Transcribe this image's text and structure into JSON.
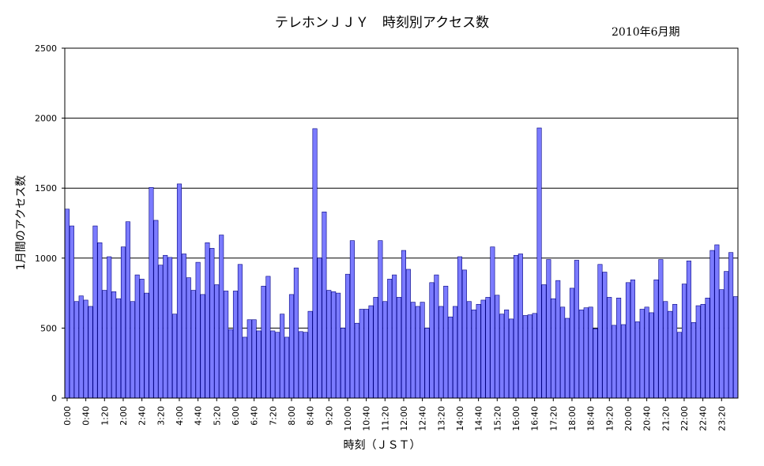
{
  "chart_data": {
    "type": "bar",
    "title": "テレホンＪＪＹ　時刻別アクセス数",
    "subtitle": "2010年6月期",
    "xlabel": "時刻（ＪＳＴ）",
    "ylabel": "1月間のアクセス数",
    "ylim": [
      0,
      2500
    ],
    "y_ticks": [
      0,
      500,
      1000,
      1500,
      2000,
      2500
    ],
    "grid": true,
    "legend": "none",
    "bar_color": "#7b7bff",
    "bar_edge_color": "#000080",
    "x_tick_labels": [
      "0:00",
      "0:40",
      "1:20",
      "2:00",
      "2:40",
      "3:20",
      "4:00",
      "4:40",
      "5:20",
      "6:00",
      "6:40",
      "7:20",
      "8:00",
      "8:40",
      "9:20",
      "10:00",
      "10:40",
      "11:20",
      "12:00",
      "12:40",
      "13:20",
      "14:00",
      "14:40",
      "15:20",
      "16:00",
      "16:40",
      "17:20",
      "18:00",
      "18:40",
      "19:20",
      "20:00",
      "20:40",
      "21:20",
      "22:00",
      "22:40",
      "23:20"
    ],
    "x_tick_every": 4,
    "values": [
      1350,
      1230,
      690,
      730,
      700,
      655,
      1230,
      1110,
      770,
      1010,
      760,
      710,
      1080,
      1260,
      690,
      880,
      850,
      750,
      1505,
      1270,
      950,
      1020,
      1005,
      600,
      1530,
      1030,
      860,
      770,
      970,
      740,
      1110,
      1070,
      810,
      1165,
      765,
      490,
      765,
      955,
      435,
      560,
      560,
      480,
      800,
      870,
      480,
      470,
      600,
      435,
      740,
      930,
      475,
      470,
      620,
      1925,
      1000,
      1330,
      770,
      760,
      750,
      500,
      885,
      1125,
      535,
      635,
      635,
      660,
      720,
      1125,
      690,
      850,
      880,
      720,
      1055,
      920,
      685,
      655,
      685,
      500,
      825,
      880,
      655,
      800,
      580,
      655,
      1010,
      915,
      690,
      630,
      670,
      700,
      720,
      1080,
      735,
      600,
      630,
      565,
      1020,
      1030,
      590,
      595,
      605,
      1930,
      810,
      990,
      710,
      840,
      650,
      570,
      785,
      985,
      630,
      645,
      650,
      495,
      955,
      900,
      720,
      520,
      715,
      525,
      825,
      845,
      545,
      635,
      650,
      610,
      845,
      990,
      690,
      620,
      670,
      470,
      815,
      980,
      540,
      660,
      670,
      715,
      1055,
      1095,
      775,
      905,
      1040,
      725
    ]
  }
}
